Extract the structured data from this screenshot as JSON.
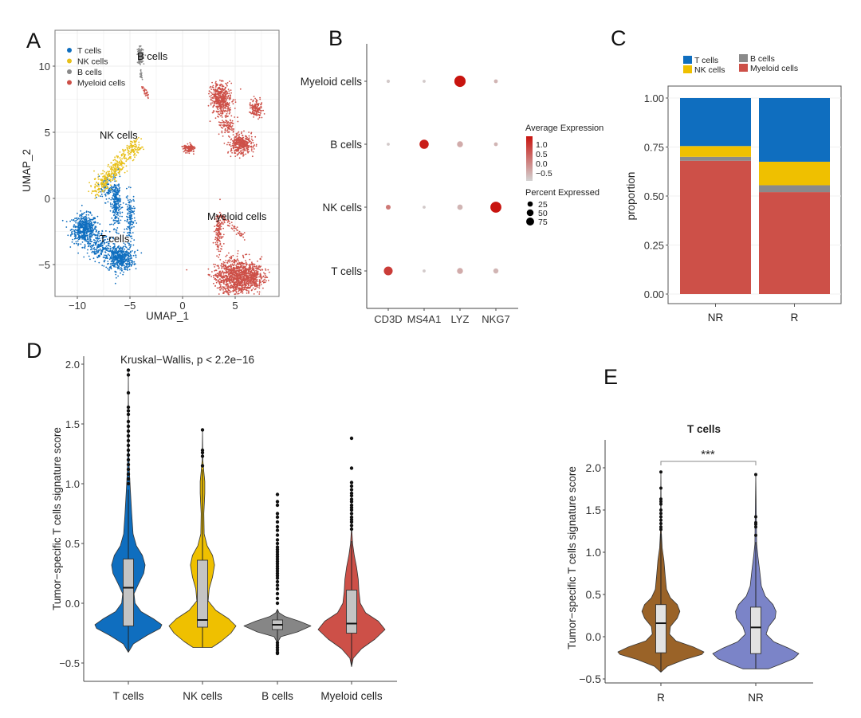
{
  "panels": {
    "a": "A",
    "b": "B",
    "c": "C",
    "d": "D",
    "e": "E"
  },
  "chart_data": [
    {
      "panel": "A",
      "type": "scatter",
      "xlabel": "UMAP_1",
      "ylabel": "UMAP_2",
      "xticks": [
        "−10",
        "−5",
        "0",
        "5"
      ],
      "xtick_values": [
        -10,
        -5,
        0,
        5
      ],
      "yticks": [
        "−5",
        "0",
        "5",
        "10"
      ],
      "ytick_values": [
        -5,
        0,
        5,
        10
      ],
      "xlim": [
        -12.1,
        9.2
      ],
      "ylim": [
        -7.4,
        12.7
      ],
      "grid": true,
      "legend": {
        "position": "top-left",
        "entries": [
          {
            "name": "T cells",
            "color": "#0F6EBF"
          },
          {
            "name": "NK cells",
            "color": "#E8C01A"
          },
          {
            "name": "B cells",
            "color": "#8A8A8A"
          },
          {
            "name": "Myeloid cells",
            "color": "#CD5048"
          }
        ]
      },
      "cluster_labels": [
        "B cells",
        "NK cells",
        "T cells",
        "Myeloid cells"
      ]
    },
    {
      "panel": "B",
      "type": "dot",
      "rows": [
        "Myeloid cells",
        "B cells",
        "NK cells",
        "T cells"
      ],
      "columns": [
        "CD3D",
        "MS4A1",
        "LYZ",
        "NKG7"
      ],
      "points": [
        {
          "row": "Myeloid cells",
          "col": "CD3D",
          "pct": 3,
          "avg": -0.5
        },
        {
          "row": "Myeloid cells",
          "col": "MS4A1",
          "pct": 2,
          "avg": -0.5
        },
        {
          "row": "Myeloid cells",
          "col": "LYZ",
          "pct": 90,
          "avg": 1.3
        },
        {
          "row": "Myeloid cells",
          "col": "NKG7",
          "pct": 5,
          "avg": -0.3
        },
        {
          "row": "B cells",
          "col": "CD3D",
          "pct": 2,
          "avg": -0.5
        },
        {
          "row": "B cells",
          "col": "MS4A1",
          "pct": 55,
          "avg": 1.2
        },
        {
          "row": "B cells",
          "col": "LYZ",
          "pct": 18,
          "avg": -0.2
        },
        {
          "row": "B cells",
          "col": "NKG7",
          "pct": 5,
          "avg": -0.3
        },
        {
          "row": "NK cells",
          "col": "CD3D",
          "pct": 10,
          "avg": 0.3
        },
        {
          "row": "NK cells",
          "col": "MS4A1",
          "pct": 2,
          "avg": -0.5
        },
        {
          "row": "NK cells",
          "col": "LYZ",
          "pct": 14,
          "avg": -0.3
        },
        {
          "row": "NK cells",
          "col": "NKG7",
          "pct": 85,
          "avg": 1.3
        },
        {
          "row": "T cells",
          "col": "CD3D",
          "pct": 50,
          "avg": 0.9
        },
        {
          "row": "T cells",
          "col": "MS4A1",
          "pct": 2,
          "avg": -0.5
        },
        {
          "row": "T cells",
          "col": "LYZ",
          "pct": 18,
          "avg": -0.2
        },
        {
          "row": "T cells",
          "col": "NKG7",
          "pct": 12,
          "avg": -0.3
        }
      ],
      "color_legend": {
        "title": "Average Expression",
        "ticks": [
          "1.0",
          "0.5",
          "0.0",
          "−0.5"
        ],
        "low_color": "#D3D3D3",
        "high_color": "#C8140F"
      },
      "size_legend": {
        "title": "Percent Expressed",
        "ticks": [
          "25",
          "50",
          "75"
        ],
        "values": [
          25,
          50,
          75
        ]
      }
    },
    {
      "panel": "C",
      "type": "bar",
      "stacked": true,
      "categories": [
        "NR",
        "R"
      ],
      "ylabel": "proportion",
      "yticks": [
        "0.00",
        "0.25",
        "0.50",
        "0.75",
        "1.00"
      ],
      "ylim": [
        0,
        1
      ],
      "legend": {
        "position": "top"
      },
      "series": [
        {
          "name": "Myeloid cells",
          "color": "#CD5048",
          "values": [
            0.68,
            0.52
          ]
        },
        {
          "name": "B cells",
          "color": "#8A8A8A",
          "values": [
            0.02,
            0.035
          ]
        },
        {
          "name": "NK cells",
          "color": "#EFC000",
          "values": [
            0.055,
            0.12
          ]
        },
        {
          "name": "T cells",
          "color": "#0F6EBF",
          "values": [
            0.245,
            0.325
          ]
        }
      ],
      "legend_order": [
        "T cells",
        "NK cells",
        "B cells",
        "Myeloid cells"
      ]
    },
    {
      "panel": "D",
      "type": "violin",
      "annotation": "Kruskal−Wallis, p < 2.2e−16",
      "ylabel": "Tumor−specific T cells signature score",
      "yticks": [
        "−0.5",
        "0.0",
        "0.5",
        "1.0",
        "1.5",
        "2.0"
      ],
      "ytick_values": [
        -0.5,
        0,
        0.5,
        1,
        1.5,
        2
      ],
      "categories": [
        "T cells",
        "NK cells",
        "B cells",
        "Myeloid cells"
      ],
      "groups": [
        {
          "name": "T cells",
          "color": "#0F6EBF",
          "q1": -0.19,
          "median": 0.13,
          "q3": 0.37,
          "whisker_low": -0.41,
          "whisker_high": 0.95,
          "density": [
            [
              -0.41,
              0
            ],
            [
              -0.34,
              0.15
            ],
            [
              -0.27,
              0.55
            ],
            [
              -0.21,
              0.95
            ],
            [
              -0.18,
              1
            ],
            [
              -0.13,
              0.75
            ],
            [
              -0.07,
              0.38
            ],
            [
              0.0,
              0.2
            ],
            [
              0.08,
              0.17
            ],
            [
              0.16,
              0.3
            ],
            [
              0.25,
              0.46
            ],
            [
              0.32,
              0.5
            ],
            [
              0.4,
              0.42
            ],
            [
              0.48,
              0.24
            ],
            [
              0.58,
              0.14
            ],
            [
              0.75,
              0.1
            ],
            [
              0.95,
              0.06
            ],
            [
              1.1,
              0.03
            ],
            [
              1.3,
              0.01
            ],
            [
              1.95,
              0
            ]
          ],
          "outliers": [
            1.95,
            1.91,
            1.76,
            1.64,
            1.61,
            1.58,
            1.52,
            1.48,
            1.44,
            1.4,
            1.36,
            1.32,
            1.28,
            1.24,
            1.2,
            1.16,
            1.12,
            1.08,
            1.04,
            1.0
          ]
        },
        {
          "name": "NK cells",
          "color": "#EFC000",
          "q1": -0.2,
          "median": -0.14,
          "q3": 0.36,
          "whisker_low": -0.37,
          "whisker_high": 1.12,
          "density": [
            [
              -0.37,
              0.28
            ],
            [
              -0.32,
              0.55
            ],
            [
              -0.25,
              0.85
            ],
            [
              -0.19,
              1
            ],
            [
              -0.13,
              0.78
            ],
            [
              -0.06,
              0.4
            ],
            [
              0.02,
              0.17
            ],
            [
              0.12,
              0.2
            ],
            [
              0.22,
              0.3
            ],
            [
              0.32,
              0.36
            ],
            [
              0.4,
              0.3
            ],
            [
              0.48,
              0.14
            ],
            [
              0.58,
              0.05
            ],
            [
              0.75,
              0.04
            ],
            [
              0.92,
              0.07
            ],
            [
              1.02,
              0.07
            ],
            [
              1.1,
              0.04
            ],
            [
              1.2,
              0.01
            ],
            [
              1.45,
              0
            ]
          ],
          "outliers": [
            1.45,
            1.28,
            1.26,
            1.23,
            1.15
          ]
        },
        {
          "name": "B cells",
          "color": "#868686",
          "q1": -0.22,
          "median": -0.18,
          "q3": -0.14,
          "whisker_low": -0.32,
          "whisker_high": -0.05,
          "density": [
            [
              -0.32,
              0.02
            ],
            [
              -0.28,
              0.1
            ],
            [
              -0.24,
              0.6
            ],
            [
              -0.19,
              1
            ],
            [
              -0.15,
              0.65
            ],
            [
              -0.11,
              0.22
            ],
            [
              -0.08,
              0.05
            ],
            [
              -0.05,
              0
            ]
          ],
          "outliers": [
            0.91,
            0.85,
            0.82,
            0.75,
            0.72,
            0.68,
            0.64,
            0.61,
            0.57,
            0.53,
            0.5,
            0.47,
            0.45,
            0.43,
            0.41,
            0.39,
            0.37,
            0.35,
            0.33,
            0.31,
            0.29,
            0.27,
            0.25,
            0.23,
            0.21,
            0.18,
            0.15,
            0.12,
            0.08,
            0.04,
            0.0,
            -0.33,
            -0.35,
            -0.37,
            -0.39,
            -0.41,
            -0.42
          ]
        },
        {
          "name": "Myeloid cells",
          "color": "#CD5048",
          "q1": -0.25,
          "median": -0.17,
          "q3": 0.11,
          "whisker_low": -0.53,
          "whisker_high": 0.52,
          "density": [
            [
              -0.53,
              0
            ],
            [
              -0.46,
              0.05
            ],
            [
              -0.38,
              0.3
            ],
            [
              -0.3,
              0.7
            ],
            [
              -0.22,
              1
            ],
            [
              -0.15,
              0.8
            ],
            [
              -0.08,
              0.42
            ],
            [
              0.0,
              0.26
            ],
            [
              0.1,
              0.22
            ],
            [
              0.2,
              0.2
            ],
            [
              0.3,
              0.15
            ],
            [
              0.4,
              0.08
            ],
            [
              0.5,
              0.03
            ],
            [
              0.6,
              0.01
            ],
            [
              0.7,
              0
            ]
          ],
          "outliers": [
            1.38,
            1.13,
            1.01,
            0.98,
            0.95,
            0.92,
            0.9,
            0.87,
            0.85,
            0.82,
            0.8,
            0.78,
            0.75,
            0.72,
            0.7,
            0.68,
            0.65,
            0.62
          ]
        }
      ]
    },
    {
      "panel": "E",
      "type": "violin",
      "title": "T cells",
      "significance": "***",
      "ylabel": "Tumor−specific T cells signature score",
      "yticks": [
        "−0.5",
        "0.0",
        "0.5",
        "1.0",
        "1.5",
        "2.0"
      ],
      "ytick_values": [
        -0.5,
        0,
        0.5,
        1,
        1.5,
        2
      ],
      "categories": [
        "R",
        "NR"
      ],
      "groups": [
        {
          "name": "R",
          "color": "#9A6328",
          "q1": -0.19,
          "median": 0.16,
          "q3": 0.38,
          "whisker_low": -0.42,
          "whisker_high": 1.22,
          "density": [
            [
              -0.42,
              0
            ],
            [
              -0.35,
              0.15
            ],
            [
              -0.27,
              0.55
            ],
            [
              -0.21,
              0.95
            ],
            [
              -0.18,
              1
            ],
            [
              -0.12,
              0.75
            ],
            [
              -0.05,
              0.35
            ],
            [
              0.03,
              0.2
            ],
            [
              0.12,
              0.22
            ],
            [
              0.22,
              0.38
            ],
            [
              0.3,
              0.44
            ],
            [
              0.38,
              0.38
            ],
            [
              0.46,
              0.22
            ],
            [
              0.56,
              0.13
            ],
            [
              0.72,
              0.1
            ],
            [
              0.9,
              0.07
            ],
            [
              1.05,
              0.03
            ],
            [
              1.25,
              0.01
            ],
            [
              1.95,
              0
            ]
          ],
          "outliers": [
            1.95,
            1.76,
            1.63,
            1.6,
            1.57,
            1.5,
            1.46,
            1.42,
            1.38,
            1.34,
            1.3,
            1.27
          ]
        },
        {
          "name": "NR",
          "color": "#7B84C8",
          "q1": -0.2,
          "median": 0.11,
          "q3": 0.35,
          "whisker_low": -0.38,
          "whisker_high": 1.12,
          "density": [
            [
              -0.38,
              0.3
            ],
            [
              -0.33,
              0.55
            ],
            [
              -0.26,
              0.88
            ],
            [
              -0.2,
              1
            ],
            [
              -0.14,
              0.78
            ],
            [
              -0.06,
              0.42
            ],
            [
              0.03,
              0.24
            ],
            [
              0.12,
              0.3
            ],
            [
              0.22,
              0.45
            ],
            [
              0.3,
              0.47
            ],
            [
              0.38,
              0.4
            ],
            [
              0.48,
              0.22
            ],
            [
              0.6,
              0.13
            ],
            [
              0.78,
              0.09
            ],
            [
              0.95,
              0.05
            ],
            [
              1.1,
              0.02
            ],
            [
              1.92,
              0
            ]
          ],
          "outliers": [
            1.92,
            1.42,
            1.35,
            1.33,
            1.3,
            1.2
          ]
        }
      ]
    }
  ]
}
